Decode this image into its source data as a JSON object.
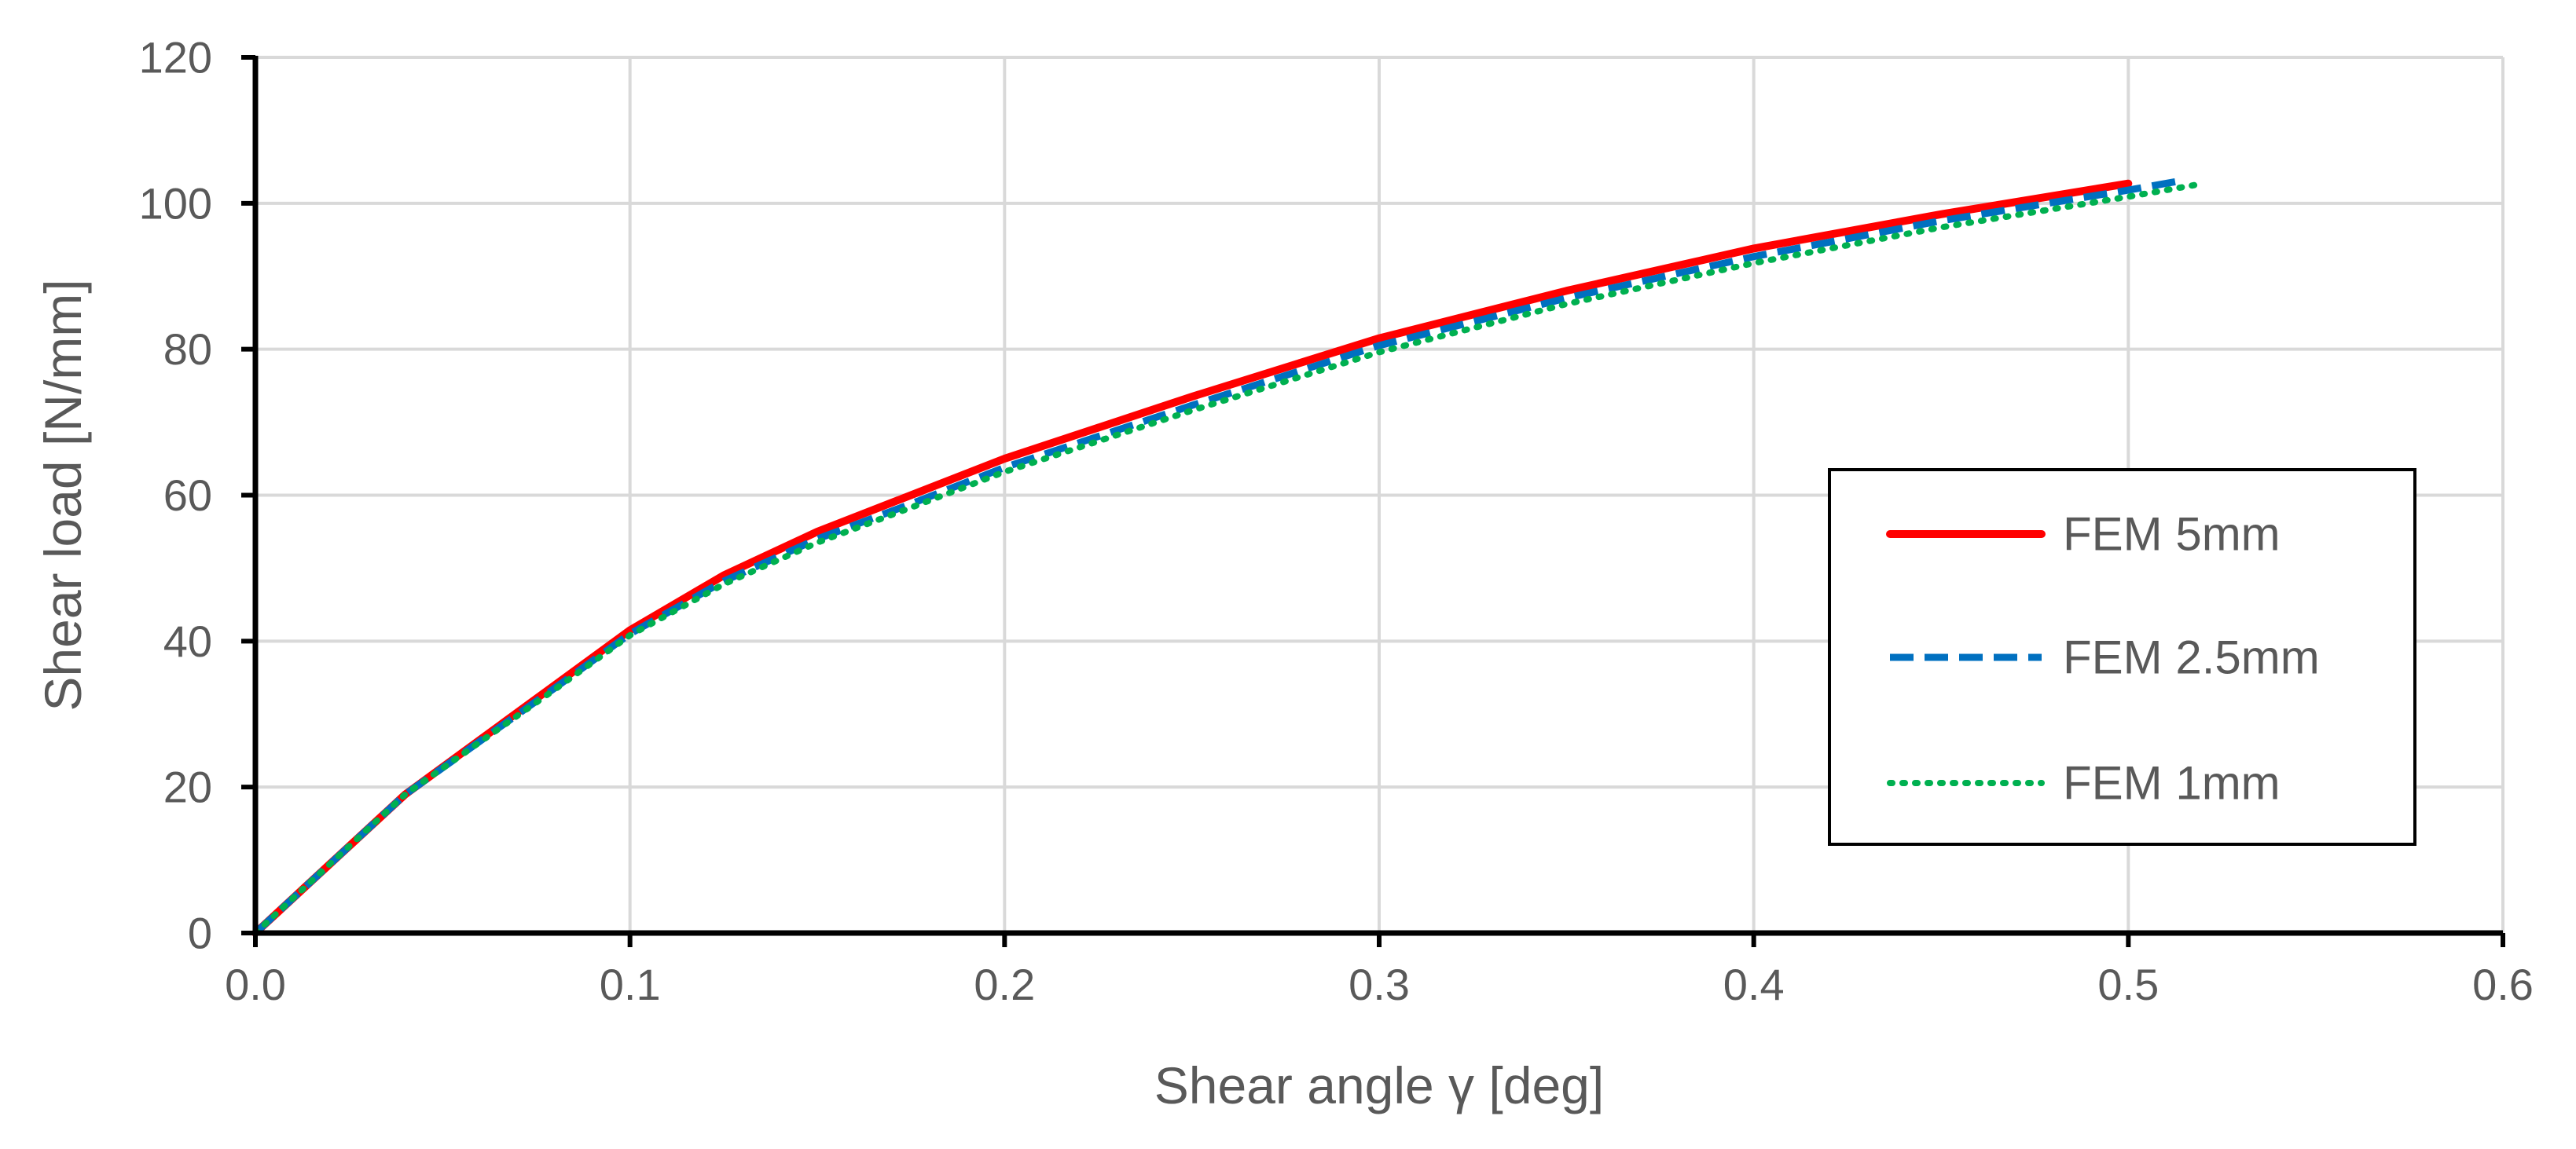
{
  "chart_data": {
    "type": "line",
    "xlabel": "Shear angle γ [deg]",
    "ylabel": "Shear load [N/mm]",
    "xlim": [
      0,
      0.6
    ],
    "ylim": [
      0,
      120
    ],
    "x_ticks": [
      "0.0",
      "0.1",
      "0.2",
      "0.3",
      "0.4",
      "0.5",
      "0.6"
    ],
    "y_ticks": [
      "0",
      "20",
      "40",
      "60",
      "80",
      "100",
      "120"
    ],
    "grid": true,
    "legend_position": "center-right",
    "series": [
      {
        "name": "FEM 5mm",
        "color": "#ff0000",
        "style": "solid",
        "points": [
          [
            0,
            0
          ],
          [
            0.02,
            9.5
          ],
          [
            0.04,
            19
          ],
          [
            0.06,
            26.5
          ],
          [
            0.08,
            34
          ],
          [
            0.1,
            41.5
          ],
          [
            0.125,
            49
          ],
          [
            0.15,
            55
          ],
          [
            0.175,
            60
          ],
          [
            0.2,
            65
          ],
          [
            0.25,
            73.5
          ],
          [
            0.3,
            81.5
          ],
          [
            0.35,
            88
          ],
          [
            0.4,
            93.8
          ],
          [
            0.45,
            98.5
          ],
          [
            0.5,
            102.7
          ]
        ]
      },
      {
        "name": "FEM 2.5mm",
        "color": "#0070c0",
        "style": "dashed",
        "points": [
          [
            0,
            0
          ],
          [
            0.02,
            9.5
          ],
          [
            0.04,
            19
          ],
          [
            0.06,
            26.3
          ],
          [
            0.08,
            33.6
          ],
          [
            0.1,
            41
          ],
          [
            0.125,
            48.2
          ],
          [
            0.15,
            54
          ],
          [
            0.175,
            58.8
          ],
          [
            0.2,
            63.8
          ],
          [
            0.25,
            72.3
          ],
          [
            0.3,
            80.5
          ],
          [
            0.35,
            87
          ],
          [
            0.4,
            92.7
          ],
          [
            0.45,
            97.6
          ],
          [
            0.5,
            101.8
          ],
          [
            0.513,
            103
          ]
        ]
      },
      {
        "name": "FEM 1mm",
        "color": "#00b050",
        "style": "dotted",
        "points": [
          [
            0,
            0
          ],
          [
            0.02,
            9.5
          ],
          [
            0.04,
            19
          ],
          [
            0.06,
            26.2
          ],
          [
            0.08,
            33.4
          ],
          [
            0.1,
            40.8
          ],
          [
            0.125,
            47.8
          ],
          [
            0.15,
            53.5
          ],
          [
            0.175,
            58.3
          ],
          [
            0.2,
            63.2
          ],
          [
            0.25,
            71.6
          ],
          [
            0.3,
            79.6
          ],
          [
            0.35,
            86.2
          ],
          [
            0.4,
            91.8
          ],
          [
            0.45,
            96.7
          ],
          [
            0.5,
            100.9
          ],
          [
            0.52,
            102.7
          ]
        ]
      }
    ]
  }
}
